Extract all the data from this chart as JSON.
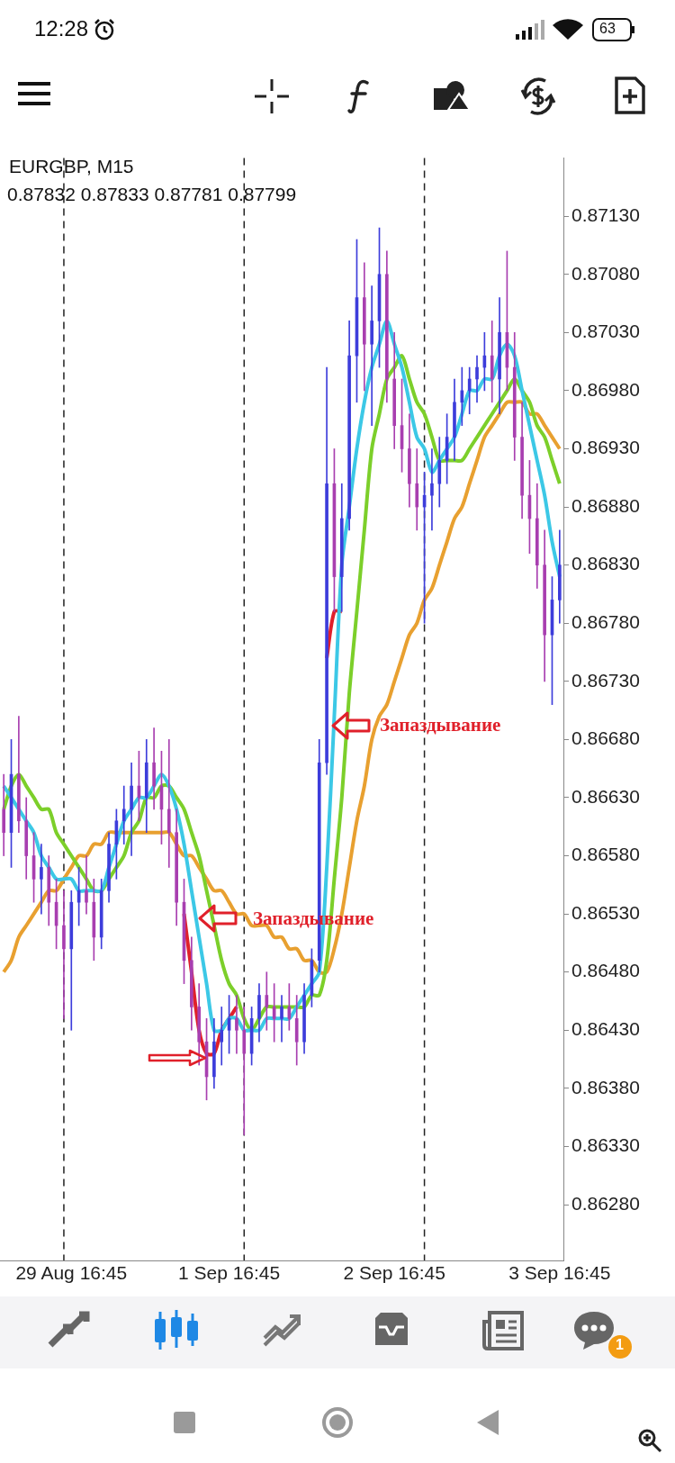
{
  "chart_data": {
    "type": "candlestick",
    "title": "EURGBP, M15",
    "subtitle": "0.87832 0.87833 0.87781 0.87799",
    "categories": [
      null,
      null,
      null,
      null,
      null,
      null,
      null,
      null,
      null,
      "29 Aug 16:45",
      null,
      null,
      null,
      null,
      null,
      null,
      null,
      null,
      null,
      null,
      null,
      null,
      null,
      null,
      null,
      null,
      null,
      null,
      null,
      null,
      "1 Sep 16:45",
      null,
      null,
      null,
      null,
      null,
      null,
      null,
      null,
      null,
      null,
      null,
      null,
      null,
      null,
      null,
      null,
      null,
      null,
      null,
      null,
      null,
      "2 Sep 16:45",
      null,
      null,
      null,
      null,
      null,
      null,
      null,
      null,
      null,
      null,
      null,
      null,
      null,
      null,
      null,
      null,
      null,
      null,
      null,
      null,
      null,
      "3 Sep 16:45"
    ],
    "ohlc": [
      [
        0.8662,
        0.8665,
        0.8658,
        0.866
      ],
      [
        0.866,
        0.8668,
        0.8657,
        0.8665
      ],
      [
        0.8665,
        0.867,
        0.866,
        0.8661
      ],
      [
        0.8661,
        0.8663,
        0.8656,
        0.8658
      ],
      [
        0.8658,
        0.866,
        0.8654,
        0.8656
      ],
      [
        0.8656,
        0.8659,
        0.8653,
        0.8657
      ],
      [
        0.8657,
        0.8658,
        0.8652,
        0.8654
      ],
      [
        0.8654,
        0.8656,
        0.865,
        0.8652
      ],
      [
        0.8652,
        0.8655,
        0.8644,
        0.865
      ],
      [
        0.865,
        0.8655,
        0.8643,
        0.8654
      ],
      [
        0.8654,
        0.8657,
        0.8652,
        0.8655
      ],
      [
        0.8655,
        0.8658,
        0.8653,
        0.8654
      ],
      [
        0.8654,
        0.8656,
        0.8649,
        0.8651
      ],
      [
        0.8651,
        0.8656,
        0.865,
        0.8655
      ],
      [
        0.8655,
        0.866,
        0.8654,
        0.8659
      ],
      [
        0.8659,
        0.8662,
        0.8656,
        0.8661
      ],
      [
        0.8661,
        0.8664,
        0.8659,
        0.8662
      ],
      [
        0.8662,
        0.8666,
        0.8658,
        0.8664
      ],
      [
        0.8664,
        0.8667,
        0.8661,
        0.8663
      ],
      [
        0.8663,
        0.8668,
        0.866,
        0.8666
      ],
      [
        0.8666,
        0.8669,
        0.8662,
        0.8664
      ],
      [
        0.8664,
        0.8667,
        0.8659,
        0.8662
      ],
      [
        0.8662,
        0.8668,
        0.8657,
        0.866
      ],
      [
        0.866,
        0.8662,
        0.8652,
        0.8654
      ],
      [
        0.8654,
        0.8656,
        0.8647,
        0.8649
      ],
      [
        0.8649,
        0.8651,
        0.8643,
        0.8645
      ],
      [
        0.8645,
        0.8647,
        0.864,
        0.8642
      ],
      [
        0.8642,
        0.8644,
        0.8637,
        0.8639
      ],
      [
        0.8639,
        0.8644,
        0.8638,
        0.8642
      ],
      [
        0.8642,
        0.8645,
        0.864,
        0.8643
      ],
      [
        0.8643,
        0.8646,
        0.8641,
        0.8644
      ],
      [
        0.8644,
        0.8646,
        0.8641,
        0.8643
      ],
      [
        0.8643,
        0.8645,
        0.8634,
        0.8641
      ],
      [
        0.8641,
        0.8645,
        0.864,
        0.8644
      ],
      [
        0.8644,
        0.8647,
        0.8642,
        0.8646
      ],
      [
        0.8646,
        0.8648,
        0.8643,
        0.8645
      ],
      [
        0.8645,
        0.8647,
        0.8642,
        0.8644
      ],
      [
        0.8644,
        0.8646,
        0.8642,
        0.8645
      ],
      [
        0.8645,
        0.8647,
        0.8643,
        0.8644
      ],
      [
        0.8644,
        0.8646,
        0.864,
        0.8642
      ],
      [
        0.8642,
        0.8647,
        0.8641,
        0.8646
      ],
      [
        0.8646,
        0.865,
        0.8645,
        0.8649
      ],
      [
        0.8649,
        0.8668,
        0.8648,
        0.8666
      ],
      [
        0.8666,
        0.87,
        0.8665,
        0.869
      ],
      [
        0.869,
        0.8693,
        0.8679,
        0.8682
      ],
      [
        0.8682,
        0.869,
        0.8679,
        0.8687
      ],
      [
        0.8687,
        0.8704,
        0.8686,
        0.8701
      ],
      [
        0.8701,
        0.8711,
        0.8697,
        0.8706
      ],
      [
        0.8706,
        0.8709,
        0.8698,
        0.8702
      ],
      [
        0.8702,
        0.8707,
        0.8695,
        0.8704
      ],
      [
        0.8704,
        0.8712,
        0.87,
        0.8708
      ],
      [
        0.8708,
        0.871,
        0.8697,
        0.8699
      ],
      [
        0.8699,
        0.8703,
        0.8693,
        0.8695
      ],
      [
        0.8695,
        0.8699,
        0.8691,
        0.8693
      ],
      [
        0.8693,
        0.8696,
        0.8688,
        0.869
      ],
      [
        0.869,
        0.8693,
        0.8686,
        0.8688
      ],
      [
        0.8688,
        0.8691,
        0.8678,
        0.8689
      ],
      [
        0.8689,
        0.8693,
        0.8686,
        0.869
      ],
      [
        0.869,
        0.8694,
        0.8688,
        0.8692
      ],
      [
        0.8692,
        0.8696,
        0.869,
        0.8694
      ],
      [
        0.8694,
        0.8699,
        0.8692,
        0.8697
      ],
      [
        0.8697,
        0.87,
        0.8695,
        0.8698
      ],
      [
        0.8698,
        0.87,
        0.8696,
        0.8699
      ],
      [
        0.8699,
        0.8701,
        0.8697,
        0.87
      ],
      [
        0.87,
        0.8703,
        0.8698,
        0.8701
      ],
      [
        0.8701,
        0.8704,
        0.8697,
        0.8699
      ],
      [
        0.8699,
        0.8706,
        0.8696,
        0.8703
      ],
      [
        0.8703,
        0.871,
        0.8698,
        0.87
      ],
      [
        0.87,
        0.8703,
        0.8692,
        0.8694
      ],
      [
        0.8694,
        0.8697,
        0.8687,
        0.8689
      ],
      [
        0.8689,
        0.8692,
        0.8684,
        0.8687
      ],
      [
        0.8687,
        0.869,
        0.8681,
        0.8683
      ],
      [
        0.8683,
        0.8686,
        0.8673,
        0.8677
      ],
      [
        0.8677,
        0.8682,
        0.8671,
        0.868
      ],
      [
        0.868,
        0.8686,
        0.8678,
        0.8683
      ]
    ],
    "colors": [
      "#a83fb0",
      "#3d3ddb",
      "#a83fb0",
      "#a83fb0",
      "#a83fb0",
      "#3d3ddb",
      "#a83fb0",
      "#a83fb0",
      "#a83fb0",
      "#3d3ddb",
      "#3d3ddb",
      "#a83fb0",
      "#a83fb0",
      "#3d3ddb",
      "#3d3ddb",
      "#3d3ddb",
      "#3d3ddb",
      "#3d3ddb",
      "#a83fb0",
      "#3d3ddb",
      "#a83fb0",
      "#a83fb0",
      "#a83fb0",
      "#a83fb0",
      "#a83fb0",
      "#a83fb0",
      "#a83fb0",
      "#a83fb0",
      "#3d3ddb",
      "#3d3ddb",
      "#3d3ddb",
      "#a83fb0",
      "#a83fb0",
      "#3d3ddb",
      "#3d3ddb",
      "#a83fb0",
      "#a83fb0",
      "#3d3ddb",
      "#a83fb0",
      "#a83fb0",
      "#3d3ddb",
      "#3d3ddb",
      "#3d3ddb",
      "#3d3ddb",
      "#a83fb0",
      "#3d3ddb",
      "#3d3ddb",
      "#3d3ddb",
      "#a83fb0",
      "#3d3ddb",
      "#3d3ddb",
      "#a83fb0",
      "#a83fb0",
      "#a83fb0",
      "#a83fb0",
      "#a83fb0",
      "#3d3ddb",
      "#3d3ddb",
      "#3d3ddb",
      "#3d3ddb",
      "#3d3ddb",
      "#3d3ddb",
      "#3d3ddb",
      "#3d3ddb",
      "#3d3ddb",
      "#a83fb0",
      "#3d3ddb",
      "#a83fb0",
      "#a83fb0",
      "#a83fb0",
      "#a83fb0",
      "#a83fb0",
      "#a83fb0",
      "#3d3ddb",
      "#3d3ddb"
    ],
    "series": [
      {
        "type": "line",
        "color": "#3cc8e6",
        "values": [
          0.8664,
          0.8663,
          0.8662,
          0.8661,
          0.866,
          0.8658,
          0.8657,
          0.8656,
          0.8656,
          0.8656,
          0.8655,
          0.8655,
          0.8655,
          0.8655,
          0.8657,
          0.8659,
          0.8661,
          0.8662,
          0.8663,
          0.8663,
          0.8664,
          0.8665,
          0.8664,
          0.8662,
          0.8659,
          0.8655,
          0.8651,
          0.8647,
          0.8643,
          0.8643,
          0.8644,
          0.8644,
          0.8643,
          0.8643,
          0.8643,
          0.8644,
          0.8644,
          0.8644,
          0.8644,
          0.8645,
          0.8646,
          0.8647,
          0.8648,
          0.8657,
          0.867,
          0.8683,
          0.8688,
          0.8693,
          0.8697,
          0.87,
          0.8702,
          0.8704,
          0.8702,
          0.87,
          0.8697,
          0.8694,
          0.8693,
          0.8691,
          0.8692,
          0.8693,
          0.8694,
          0.8696,
          0.8698,
          0.8698,
          0.8699,
          0.8699,
          0.8701,
          0.8702,
          0.8701,
          0.8698,
          0.8695,
          0.8692,
          0.8689,
          0.8685,
          0.8682
        ]
      },
      {
        "type": "line",
        "color": "#7ccf2a",
        "values": [
          0.8662,
          0.8664,
          0.8665,
          0.8664,
          0.8663,
          0.8662,
          0.8662,
          0.866,
          0.8659,
          0.8658,
          0.8657,
          0.8656,
          0.8655,
          0.8655,
          0.8656,
          0.8657,
          0.8658,
          0.866,
          0.8661,
          0.8663,
          0.8663,
          0.8664,
          0.8664,
          0.8663,
          0.8662,
          0.866,
          0.8658,
          0.8655,
          0.8652,
          0.8649,
          0.8647,
          0.8646,
          0.8644,
          0.8643,
          0.8644,
          0.8645,
          0.8645,
          0.8645,
          0.8645,
          0.8645,
          0.8645,
          0.8646,
          0.8646,
          0.8649,
          0.8656,
          0.8663,
          0.8672,
          0.8679,
          0.8686,
          0.8693,
          0.8696,
          0.8699,
          0.87,
          0.8701,
          0.8699,
          0.8697,
          0.8696,
          0.8694,
          0.8692,
          0.8692,
          0.8692,
          0.8692,
          0.8693,
          0.8694,
          0.8695,
          0.8696,
          0.8697,
          0.8698,
          0.8699,
          0.8698,
          0.8697,
          0.8695,
          0.8694,
          0.8692,
          0.869
        ]
      },
      {
        "type": "line",
        "color": "#e8a030",
        "values": [
          0.8648,
          0.8649,
          0.8651,
          0.8652,
          0.8653,
          0.8654,
          0.8655,
          0.8655,
          0.8656,
          0.8657,
          0.8658,
          0.8658,
          0.8659,
          0.8659,
          0.866,
          0.866,
          0.866,
          0.866,
          0.866,
          0.866,
          0.866,
          0.866,
          0.866,
          0.8659,
          0.8658,
          0.8658,
          0.8657,
          0.8656,
          0.8655,
          0.8655,
          0.8654,
          0.8653,
          0.8653,
          0.8652,
          0.8652,
          0.8652,
          0.8651,
          0.8651,
          0.865,
          0.865,
          0.8649,
          0.8649,
          0.8648,
          0.8648,
          0.865,
          0.8653,
          0.8657,
          0.8661,
          0.8664,
          0.8668,
          0.867,
          0.8671,
          0.8673,
          0.8675,
          0.8677,
          0.8678,
          0.868,
          0.8681,
          0.8683,
          0.8685,
          0.8687,
          0.8688,
          0.869,
          0.8692,
          0.8694,
          0.8695,
          0.8696,
          0.8697,
          0.8697,
          0.8697,
          0.8696,
          0.8696,
          0.8695,
          0.8694,
          0.8693
        ]
      },
      {
        "type": "line",
        "color": "#e0202a",
        "values": [
          null,
          null,
          null,
          null,
          null,
          null,
          null,
          null,
          null,
          null,
          null,
          null,
          null,
          null,
          null,
          null,
          null,
          null,
          null,
          null,
          null,
          null,
          null,
          null,
          0.8653,
          0.8648,
          0.8643,
          0.8641,
          0.8641,
          0.8643,
          0.8644,
          0.8645,
          null,
          null,
          null,
          null,
          null,
          null,
          null,
          null,
          null,
          null,
          null,
          null,
          null,
          null,
          null,
          null,
          null,
          null,
          null,
          null,
          null,
          null,
          null,
          null,
          null,
          null,
          null,
          null,
          null,
          null,
          null,
          null,
          null,
          null,
          null,
          null,
          null,
          null,
          null,
          null,
          null,
          null,
          null
        ]
      },
      {
        "type": "line",
        "color": "#e0202a",
        "values": [
          null,
          null,
          null,
          null,
          null,
          null,
          null,
          null,
          null,
          null,
          null,
          null,
          null,
          null,
          null,
          null,
          null,
          null,
          null,
          null,
          null,
          null,
          null,
          null,
          null,
          null,
          null,
          null,
          null,
          null,
          null,
          null,
          null,
          null,
          null,
          null,
          null,
          null,
          null,
          null,
          null,
          null,
          null,
          0.8675,
          0.8679,
          0.8679,
          null,
          null,
          null,
          null,
          null,
          null,
          null,
          null,
          null,
          null,
          null,
          null,
          null,
          null,
          null,
          null,
          null,
          null,
          null,
          null,
          null,
          null,
          null,
          null,
          null,
          null,
          null,
          null,
          null
        ]
      }
    ],
    "ylim": [
      0.86232,
      0.8718
    ],
    "yticks": [
      {
        "value": 0.8628,
        "label": "0.86280"
      },
      {
        "value": 0.8633,
        "label": "0.86330"
      },
      {
        "value": 0.8638,
        "label": "0.86380"
      },
      {
        "value": 0.8643,
        "label": "0.86430"
      },
      {
        "value": 0.8648,
        "label": "0.86480"
      },
      {
        "value": 0.8653,
        "label": "0.86530"
      },
      {
        "value": 0.8658,
        "label": "0.86580"
      },
      {
        "value": 0.8663,
        "label": "0.86630"
      },
      {
        "value": 0.8668,
        "label": "0.86680"
      },
      {
        "value": 0.8673,
        "label": "0.86730"
      },
      {
        "value": 0.8678,
        "label": "0.86780"
      },
      {
        "value": 0.8683,
        "label": "0.86830"
      },
      {
        "value": 0.8688,
        "label": "0.86880"
      },
      {
        "value": 0.8693,
        "label": "0.86930"
      },
      {
        "value": 0.8698,
        "label": "0.86980"
      },
      {
        "value": 0.8703,
        "label": "0.87030"
      },
      {
        "value": 0.8708,
        "label": "0.87080"
      },
      {
        "value": 0.8713,
        "label": "0.87130"
      }
    ],
    "grid": false,
    "legend": false,
    "annotations": [
      "Запаздывание",
      "Запаздывание",
      "12:28",
      "63",
      "1"
    ]
  }
}
